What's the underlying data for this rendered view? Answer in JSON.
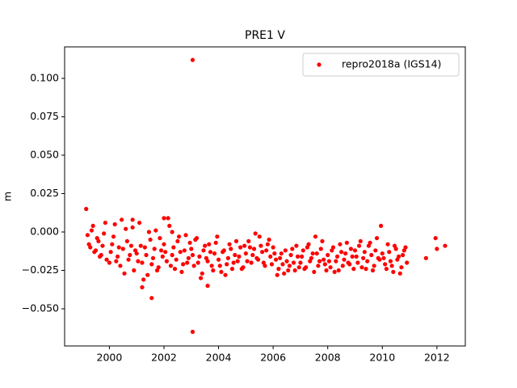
{
  "chart_data": {
    "type": "scatter",
    "title": "PRE1 V",
    "y_label": "m",
    "x": [
      1999.2,
      1999.3,
      1999.4,
      1999.5,
      1999.6,
      1999.7,
      1999.8,
      1999.9,
      2000.0,
      2000.1,
      2000.2,
      2000.3,
      2000.4,
      2000.5,
      2000.6,
      2000.7,
      2000.8,
      2000.9,
      2001.0,
      2001.1,
      2001.2,
      2001.3,
      2001.4,
      2001.5,
      2001.6,
      2001.7,
      2001.8,
      2001.9,
      2002.0,
      2002.1,
      2002.2,
      2002.3,
      2002.4,
      2002.5,
      2002.6,
      2002.7,
      2002.8,
      2002.9,
      2003.0,
      2003.1,
      2003.2,
      2003.3,
      2003.4,
      2003.5,
      2003.6,
      2003.7,
      2003.8,
      2003.9,
      2004.0,
      2004.1,
      2004.2,
      2004.3,
      2004.4,
      2004.5,
      2004.6,
      2004.7,
      2004.8,
      2004.9,
      2005.0,
      2005.1,
      2005.2,
      2005.3,
      2005.4,
      2005.5,
      2005.6,
      2005.7,
      2005.8,
      2005.9,
      2006.0,
      2006.1,
      2006.2,
      2006.3,
      2006.4,
      2006.5,
      2006.6,
      2006.7,
      2006.8,
      2006.9,
      2007.0,
      2007.1,
      2007.2,
      2007.3,
      2007.4,
      2007.5,
      2007.6,
      2007.7,
      2007.8,
      2007.9,
      2008.0,
      2008.1,
      2008.2,
      2008.3,
      2008.4,
      2008.5,
      2008.6,
      2008.7,
      2008.8,
      2008.9,
      2009.0,
      2009.1,
      2009.2,
      2009.3,
      2009.4,
      2009.5,
      2009.6,
      2009.7,
      2009.8,
      2009.9,
      2010.0,
      2010.1,
      2010.2,
      2010.3,
      2010.4,
      2010.5,
      2010.6,
      2010.7,
      2010.8,
      2010.9,
      1999.25,
      1999.35,
      1999.45,
      1999.55,
      1999.65,
      1999.75,
      1999.85,
      2000.05,
      2000.15,
      2000.25,
      2000.35,
      2000.45,
      2000.55,
      2000.65,
      2000.75,
      2000.85,
      2000.95,
      2001.05,
      2001.15,
      2001.25,
      2001.35,
      2001.45,
      2001.55,
      2001.65,
      2001.75,
      2001.85,
      2001.95,
      2002.05,
      2002.15,
      2002.25,
      2002.35,
      2002.45,
      2002.55,
      2002.65,
      2002.75,
      2002.85,
      2002.95,
      2003.05,
      2003.15,
      2003.25,
      2003.35,
      2003.45,
      2003.55,
      2003.65,
      2003.75,
      2003.85,
      2003.95,
      2004.05,
      2004.15,
      2004.25,
      2004.35,
      2004.45,
      2004.55,
      2004.65,
      2004.75,
      2004.85,
      2004.95,
      2005.05,
      2005.15,
      2005.25,
      2005.35,
      2005.45,
      2005.55,
      2005.65,
      2005.75,
      2005.85,
      2005.95,
      2006.05,
      2006.15,
      2006.25,
      2006.35,
      2006.45,
      2006.55,
      2006.65,
      2006.75,
      2006.85,
      2006.95,
      2007.05,
      2007.15,
      2007.25,
      2007.35,
      2007.45,
      2007.55,
      2007.65,
      2007.75,
      2007.85,
      2007.95,
      2008.05,
      2008.15,
      2008.25,
      2008.35,
      2008.45,
      2008.55,
      2008.65,
      2008.75,
      2008.85,
      2008.95,
      2009.05,
      2009.15,
      2009.25,
      2009.35,
      2009.45,
      2009.55,
      2009.65,
      2009.75,
      2009.85,
      2009.95,
      2010.05,
      2010.15,
      2010.25,
      2010.35,
      2010.45,
      2010.55,
      2010.65,
      2010.75,
      2010.85,
      1999.15,
      2003.05,
      2003.05,
      2001.55,
      2001.2,
      2003.6,
      2011.6,
      2011.95,
      2012.0,
      2012.3,
      2002.3,
      2000.85,
      2002.0
    ],
    "series": [
      {
        "name": "repro2018a (IGS14)",
        "color": "#ff0000",
        "values": [
          -0.002,
          -0.01,
          0.004,
          -0.012,
          -0.006,
          -0.015,
          -0.001,
          -0.018,
          -0.02,
          -0.008,
          0.005,
          -0.016,
          -0.022,
          -0.011,
          0.002,
          -0.018,
          -0.009,
          -0.025,
          -0.014,
          0.006,
          -0.02,
          -0.01,
          -0.028,
          -0.005,
          -0.017,
          0.001,
          -0.023,
          -0.012,
          -0.008,
          -0.019,
          0.004,
          -0.015,
          -0.024,
          -0.006,
          -0.013,
          -0.021,
          -0.002,
          -0.017,
          -0.011,
          -0.022,
          -0.004,
          -0.016,
          -0.027,
          -0.009,
          -0.019,
          -0.013,
          -0.025,
          -0.007,
          -0.018,
          -0.026,
          -0.012,
          -0.021,
          -0.008,
          -0.024,
          -0.015,
          -0.019,
          -0.01,
          -0.023,
          -0.014,
          -0.006,
          -0.02,
          -0.011,
          -0.017,
          -0.003,
          -0.013,
          -0.022,
          -0.008,
          -0.016,
          -0.01,
          -0.018,
          -0.024,
          -0.014,
          -0.027,
          -0.019,
          -0.022,
          -0.011,
          -0.025,
          -0.016,
          -0.02,
          -0.012,
          -0.023,
          -0.008,
          -0.017,
          -0.026,
          -0.014,
          -0.019,
          -0.006,
          -0.021,
          -0.015,
          -0.023,
          -0.01,
          -0.019,
          -0.025,
          -0.013,
          -0.018,
          -0.007,
          -0.021,
          -0.016,
          -0.012,
          -0.02,
          -0.006,
          -0.017,
          -0.024,
          -0.009,
          -0.015,
          -0.022,
          -0.004,
          -0.018,
          -0.014,
          -0.021,
          -0.008,
          -0.019,
          -0.026,
          -0.011,
          -0.016,
          -0.023,
          -0.012,
          -0.02,
          -0.008,
          0.001,
          -0.013,
          -0.004,
          -0.016,
          -0.009,
          0.006,
          -0.013,
          -0.003,
          -0.019,
          -0.01,
          0.008,
          -0.027,
          -0.006,
          -0.015,
          0.003,
          -0.012,
          -0.019,
          -0.009,
          -0.031,
          -0.015,
          0.0,
          -0.021,
          -0.011,
          -0.025,
          -0.004,
          -0.016,
          -0.013,
          0.009,
          -0.022,
          -0.01,
          -0.018,
          -0.003,
          -0.026,
          -0.012,
          -0.02,
          -0.007,
          -0.015,
          -0.005,
          -0.02,
          -0.03,
          -0.012,
          -0.017,
          -0.008,
          -0.022,
          -0.014,
          -0.003,
          -0.022,
          -0.013,
          -0.028,
          -0.017,
          -0.011,
          -0.02,
          -0.006,
          -0.016,
          -0.024,
          -0.009,
          -0.019,
          -0.01,
          -0.015,
          -0.001,
          -0.018,
          -0.009,
          -0.02,
          -0.012,
          -0.005,
          -0.021,
          -0.014,
          -0.028,
          -0.017,
          -0.021,
          -0.012,
          -0.025,
          -0.015,
          -0.02,
          -0.009,
          -0.023,
          -0.016,
          -0.024,
          -0.01,
          -0.019,
          -0.014,
          -0.003,
          -0.022,
          -0.011,
          -0.018,
          -0.025,
          -0.019,
          -0.012,
          -0.026,
          -0.016,
          -0.008,
          -0.022,
          -0.014,
          -0.02,
          -0.011,
          -0.024,
          -0.016,
          -0.009,
          -0.023,
          -0.013,
          -0.019,
          -0.007,
          -0.025,
          -0.012,
          -0.017,
          0.004,
          -0.017,
          -0.024,
          -0.013,
          -0.022,
          -0.009,
          -0.018,
          -0.027,
          -0.015,
          -0.01,
          0.015,
          0.112,
          -0.065,
          -0.043,
          -0.036,
          -0.035,
          -0.017,
          -0.004,
          -0.011,
          -0.009,
          0.0,
          0.008,
          0.009
        ]
      }
    ],
    "xlim": [
      1998.36,
      2013.04
    ],
    "xticks": [
      2000,
      2002,
      2004,
      2006,
      2008,
      2010,
      2012
    ],
    "ylim": [
      -0.0742,
      0.1205
    ],
    "yticks": [
      {
        "value": -0.05,
        "label": "−0.050"
      },
      {
        "value": -0.025,
        "label": "−0.025"
      },
      {
        "value": 0,
        "label": "0.000"
      },
      {
        "value": 0.025,
        "label": "0.025"
      },
      {
        "value": 0.05,
        "label": "0.050"
      },
      {
        "value": 0.075,
        "label": "0.075"
      },
      {
        "value": 0.1,
        "label": "0.100"
      }
    ],
    "legend": "upper right",
    "grid": false
  }
}
